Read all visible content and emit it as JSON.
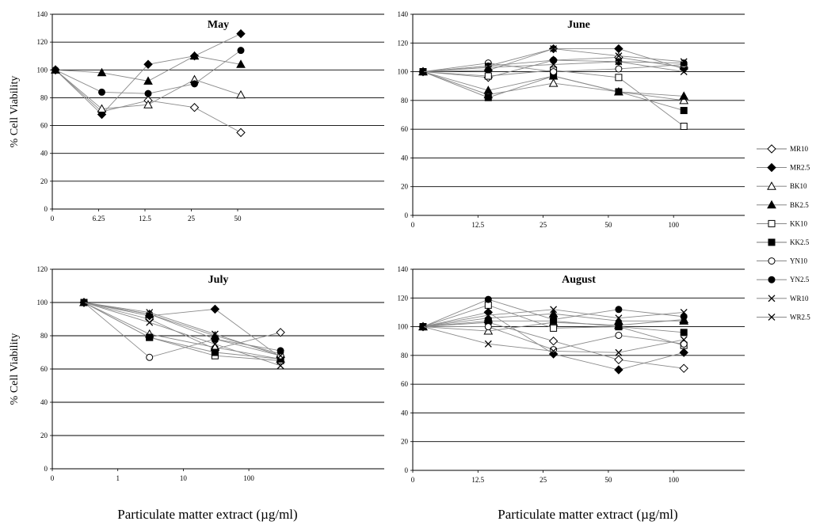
{
  "xlabel_left": "Particulate matter extract (µg/ml)",
  "xlabel_right": "Particulate matter extract (µg/ml)",
  "chart_data": [
    {
      "type": "line",
      "title": "May",
      "ylabel": "% Cell Viability",
      "ylim": [
        0,
        140
      ],
      "yticks": [
        "0",
        "20",
        "40",
        "60",
        "80",
        "100",
        "120",
        "140"
      ],
      "xticks": [
        "0",
        "6.25",
        "12.5",
        "25",
        "50"
      ],
      "x": [
        "2.5",
        "10",
        "17.5",
        "30",
        "65"
      ],
      "grid": true,
      "series": [
        {
          "name": "MR10",
          "values": [
            100,
            70,
            78,
            73,
            55
          ]
        },
        {
          "name": "MR2.5",
          "values": [
            100,
            68,
            104,
            110,
            126
          ]
        },
        {
          "name": "BK10",
          "values": [
            100,
            72,
            75,
            93,
            82
          ]
        },
        {
          "name": "BK2.5",
          "values": [
            100,
            98,
            92,
            110,
            104
          ]
        },
        {
          "name": "YN2.5",
          "values": [
            100,
            84,
            83,
            90,
            114
          ]
        }
      ]
    },
    {
      "type": "line",
      "title": "June",
      "ylabel": "",
      "ylim": [
        0,
        140
      ],
      "yticks": [
        "0",
        "20",
        "40",
        "60",
        "80",
        "100",
        "120",
        "140"
      ],
      "xticks": [
        "0",
        "12.5",
        "25",
        "50",
        "100"
      ],
      "x": [
        "6.25",
        "18.75",
        "37.5",
        "75",
        "150"
      ],
      "grid": true,
      "series": [
        {
          "name": "MR10",
          "values": [
            100,
            96,
            108,
            110,
            103
          ]
        },
        {
          "name": "MR2.5",
          "values": [
            100,
            101,
            116,
            116,
            102
          ]
        },
        {
          "name": "BK10",
          "values": [
            100,
            84,
            92,
            86,
            80
          ]
        },
        {
          "name": "BK2.5",
          "values": [
            100,
            87,
            97,
            86,
            83
          ]
        },
        {
          "name": "KK10",
          "values": [
            100,
            97,
            101,
            96,
            62
          ]
        },
        {
          "name": "KK2.5",
          "values": [
            100,
            82,
            97,
            86,
            73
          ]
        },
        {
          "name": "YN10",
          "values": [
            100,
            106,
            100,
            102,
            105
          ]
        },
        {
          "name": "YN2.5",
          "values": [
            100,
            104,
            108,
            107,
            106
          ]
        },
        {
          "name": "WR10",
          "values": [
            100,
            103,
            105,
            107,
            100
          ]
        },
        {
          "name": "WR2.5",
          "values": [
            100,
            104,
            116,
            111,
            107
          ]
        }
      ]
    },
    {
      "type": "line",
      "title": "July",
      "ylabel": "% Cell Viability",
      "ylim": [
        0,
        120
      ],
      "yticks": [
        "0",
        "20",
        "40",
        "60",
        "80",
        "100",
        "120"
      ],
      "xticks": [
        "0",
        "1",
        "10",
        "100"
      ],
      "x": [
        "0.3",
        "3",
        "30",
        "300"
      ],
      "grid": true,
      "series": [
        {
          "name": "MR10",
          "values": [
            100,
            90,
            72,
            82
          ]
        },
        {
          "name": "MR2.5",
          "values": [
            100,
            92,
            96,
            67
          ]
        },
        {
          "name": "BK10",
          "values": [
            100,
            81,
            73,
            66
          ]
        },
        {
          "name": "BK2.5",
          "values": [
            100,
            93,
            80,
            69
          ]
        },
        {
          "name": "KK10",
          "values": [
            100,
            79,
            68,
            65
          ]
        },
        {
          "name": "KK2.5",
          "values": [
            100,
            79,
            70,
            66
          ]
        },
        {
          "name": "YN10",
          "values": [
            100,
            67,
            78,
            68
          ]
        },
        {
          "name": "YN2.5",
          "values": [
            100,
            93,
            78,
            71
          ]
        },
        {
          "name": "WR10",
          "values": [
            100,
            88,
            75,
            62
          ]
        },
        {
          "name": "WR2.5",
          "values": [
            100,
            94,
            81,
            68
          ]
        }
      ]
    },
    {
      "type": "line",
      "title": "August",
      "ylabel": "",
      "ylim": [
        0,
        140
      ],
      "yticks": [
        "0",
        "20",
        "40",
        "60",
        "80",
        "100",
        "120",
        "140"
      ],
      "xticks": [
        "0",
        "12.5",
        "25",
        "50",
        "100"
      ],
      "x": [
        "6.25",
        "18.75",
        "37.5",
        "75",
        "150"
      ],
      "grid": true,
      "series": [
        {
          "name": "MR10",
          "values": [
            100,
            103,
            90,
            77,
            71
          ]
        },
        {
          "name": "MR2.5",
          "values": [
            100,
            110,
            81,
            70,
            82
          ]
        },
        {
          "name": "BK10",
          "values": [
            100,
            97,
            103,
            101,
            105
          ]
        },
        {
          "name": "BK2.5",
          "values": [
            100,
            106,
            109,
            104,
            104
          ]
        },
        {
          "name": "KK10",
          "values": [
            100,
            115,
            99,
            100,
            87
          ]
        },
        {
          "name": "KK2.5",
          "values": [
            100,
            104,
            104,
            100,
            96
          ]
        },
        {
          "name": "YN10",
          "values": [
            100,
            100,
            84,
            94,
            88
          ]
        },
        {
          "name": "YN2.5",
          "values": [
            100,
            119,
            105,
            112,
            107
          ]
        },
        {
          "name": "WR10",
          "values": [
            100,
            88,
            83,
            82,
            91
          ]
        },
        {
          "name": "WR2.5",
          "values": [
            100,
            108,
            112,
            106,
            110
          ]
        }
      ]
    }
  ],
  "legend": {
    "placement": "right",
    "items": [
      {
        "name": "MR10",
        "marker": "diamond-open"
      },
      {
        "name": "MR2.5",
        "marker": "diamond-filled"
      },
      {
        "name": "BK10",
        "marker": "triangle-open"
      },
      {
        "name": "BK2.5",
        "marker": "triangle-filled"
      },
      {
        "name": "KK10",
        "marker": "square-open"
      },
      {
        "name": "KK2.5",
        "marker": "square-filled"
      },
      {
        "name": "YN10",
        "marker": "circle-open"
      },
      {
        "name": "YN2.5",
        "marker": "circle-filled"
      },
      {
        "name": "WR10",
        "marker": "x"
      },
      {
        "name": "WR2.5",
        "marker": "x"
      }
    ]
  }
}
